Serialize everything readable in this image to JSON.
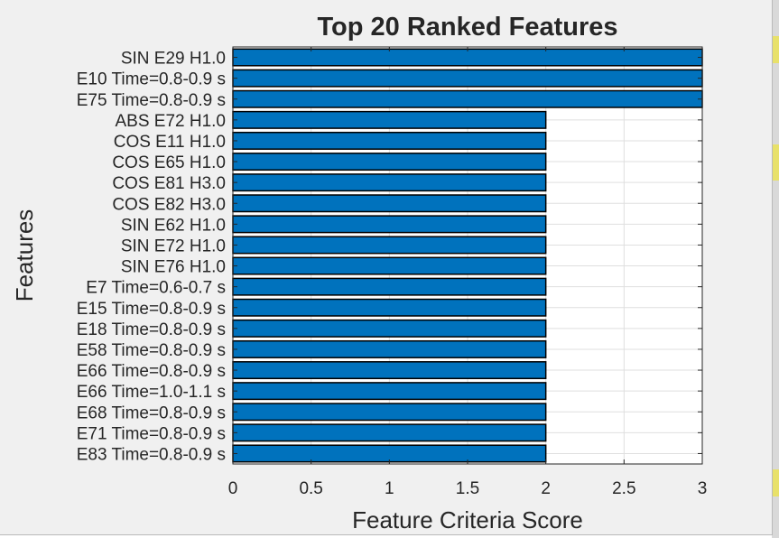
{
  "chart_data": {
    "type": "bar",
    "orientation": "horizontal",
    "title": "Top 20 Ranked Features",
    "xlabel": "Feature Criteria Score",
    "ylabel": "Features",
    "categories": [
      "SIN E29 H1.0",
      "E10 Time=0.8-0.9 s",
      "E75 Time=0.8-0.9 s",
      "ABS E72 H1.0",
      "COS E11 H1.0",
      "COS E65 H1.0",
      "COS E81 H3.0",
      "COS E82 H3.0",
      "SIN E62 H1.0",
      "SIN E72 H1.0",
      "SIN E76 H1.0",
      "E7 Time=0.6-0.7 s",
      "E15 Time=0.8-0.9 s",
      "E18 Time=0.8-0.9 s",
      "E58 Time=0.8-0.9 s",
      "E66 Time=0.8-0.9 s",
      "E66 Time=1.0-1.1 s",
      "E68 Time=0.8-0.9 s",
      "E71 Time=0.8-0.9 s",
      "E83 Time=0.8-0.9 s"
    ],
    "values": [
      3,
      3,
      3,
      2,
      2,
      2,
      2,
      2,
      2,
      2,
      2,
      2,
      2,
      2,
      2,
      2,
      2,
      2,
      2,
      2
    ],
    "xlim": [
      0,
      3
    ],
    "xticks": [
      "0",
      "0.5",
      "1",
      "1.5",
      "2",
      "2.5",
      "3"
    ],
    "grid": true,
    "bar_color": "#0072bd"
  }
}
